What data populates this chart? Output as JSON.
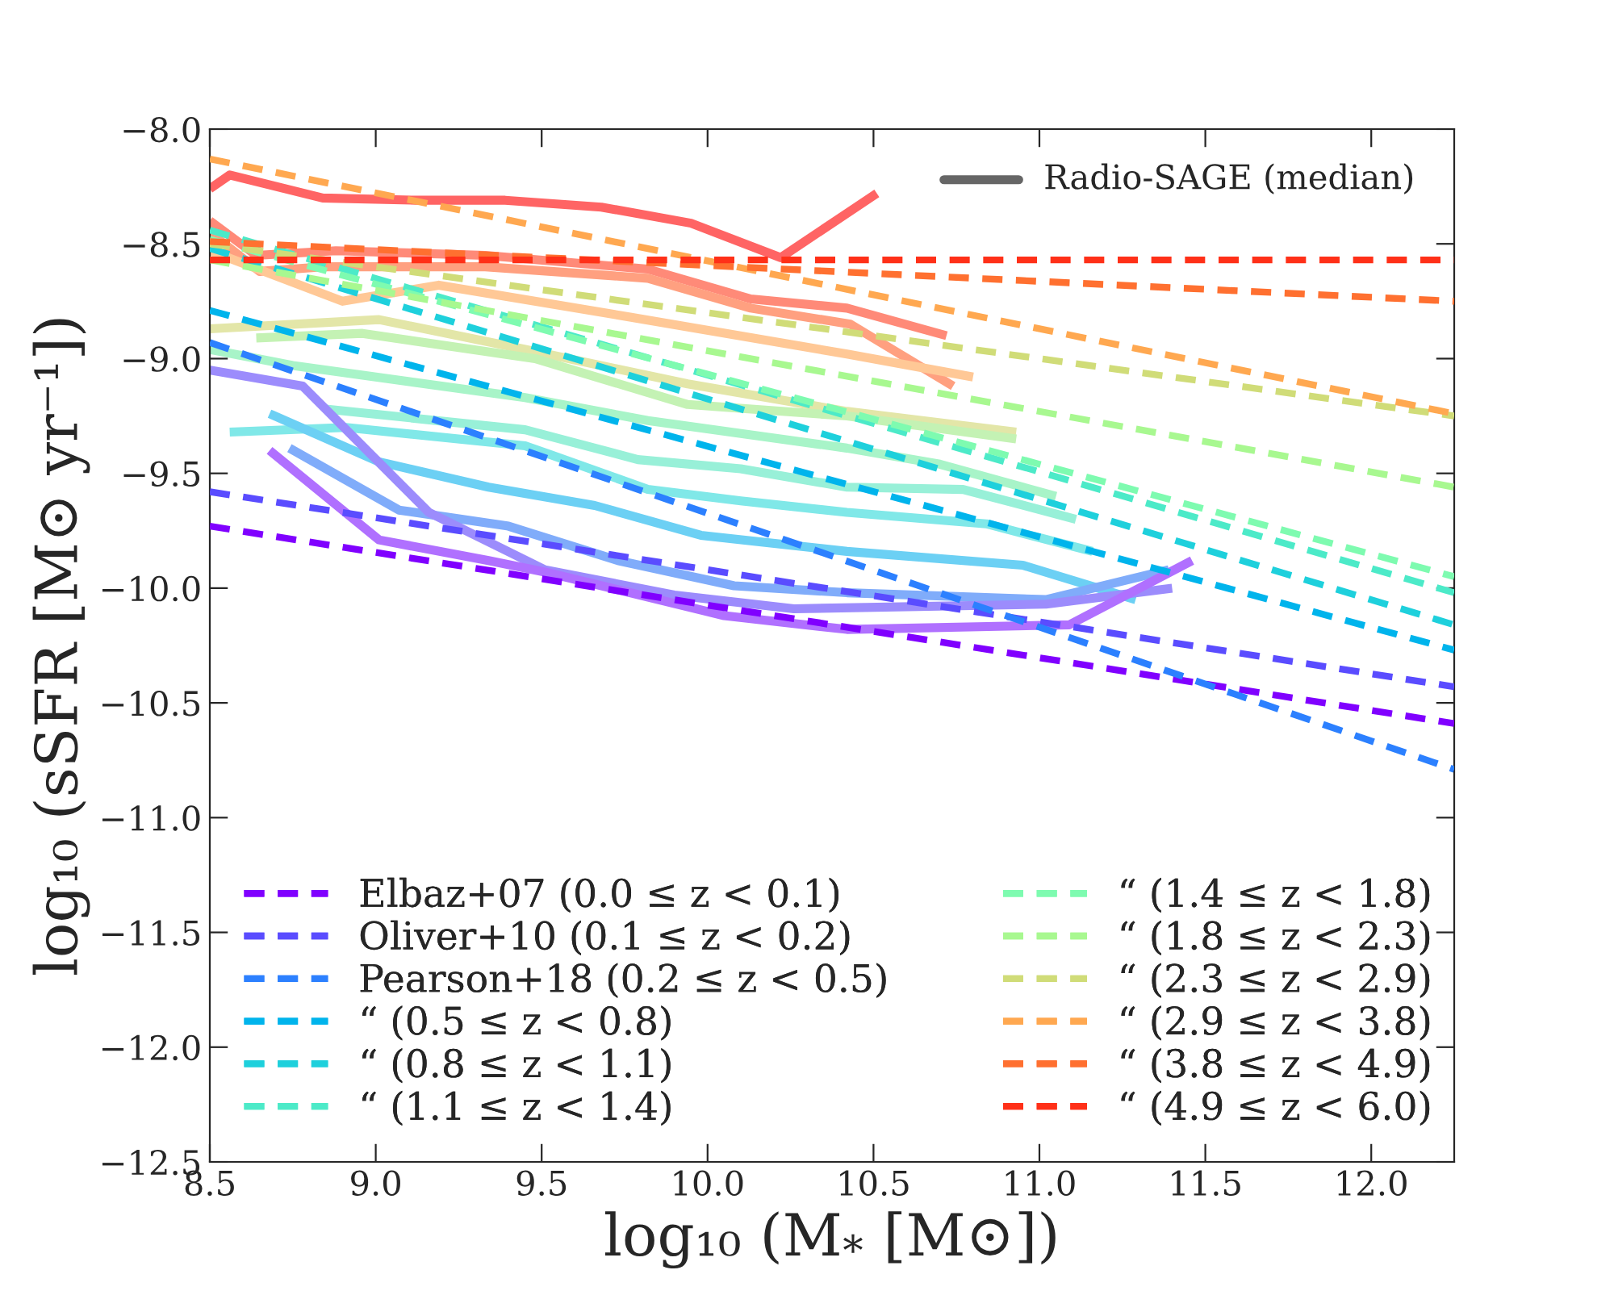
{
  "chart_data": {
    "type": "line",
    "xlabel": "log₁₀ (M$_{*}$ [M⊙])",
    "ylabel": "log₁₀ (sSFR [M⊙ yr⁻¹])",
    "xlim": [
      8.5,
      12.25
    ],
    "ylim": [
      -12.5,
      -8.0
    ],
    "xticks": [
      {
        "value": 8.5,
        "label": "8.5"
      },
      {
        "value": 9.0,
        "label": "9.0"
      },
      {
        "value": 9.5,
        "label": "9.5"
      },
      {
        "value": 10.0,
        "label": "10.0"
      },
      {
        "value": 10.5,
        "label": "10.5"
      },
      {
        "value": 11.0,
        "label": "11.0"
      },
      {
        "value": 11.5,
        "label": "11.5"
      },
      {
        "value": 12.0,
        "label": "12.0"
      }
    ],
    "yticks": [
      {
        "value": -8.0,
        "label": "−8.0"
      },
      {
        "value": -8.5,
        "label": "−8.5"
      },
      {
        "value": -9.0,
        "label": "−9.0"
      },
      {
        "value": -9.5,
        "label": "−9.5"
      },
      {
        "value": -10.0,
        "label": "−10.0"
      },
      {
        "value": -10.5,
        "label": "−10.5"
      },
      {
        "value": -11.0,
        "label": "−11.0"
      },
      {
        "value": -11.5,
        "label": "−11.5"
      },
      {
        "value": -12.0,
        "label": "−12.0"
      },
      {
        "value": -12.5,
        "label": "−12.5"
      }
    ],
    "grid": false,
    "legend": "bottom left",
    "series": [
      {
        "line_style": "solid",
        "color": "#ff6464",
        "x": [
          8.5,
          8.56,
          8.84,
          9.12,
          9.39,
          9.68,
          9.95,
          10.22,
          10.51
        ],
        "values": [
          -8.26,
          -8.2,
          -8.3,
          -8.31,
          -8.31,
          -8.34,
          -8.41,
          -8.56,
          -8.28
        ]
      },
      {
        "line_style": "solid",
        "color": "#ff8a78",
        "x": [
          8.5,
          8.64,
          8.88,
          9.33,
          9.82,
          10.13,
          10.42,
          10.72
        ],
        "values": [
          -8.4,
          -8.55,
          -8.53,
          -8.55,
          -8.61,
          -8.74,
          -8.78,
          -8.9
        ]
      },
      {
        "line_style": "solid",
        "color": "#ffa080",
        "x": [
          8.5,
          8.65,
          8.84,
          9.33,
          9.82,
          10.13,
          10.43,
          10.74
        ],
        "values": [
          -8.45,
          -8.62,
          -8.6,
          -8.6,
          -8.65,
          -8.78,
          -8.85,
          -9.12
        ]
      },
      {
        "line_style": "solid",
        "color": "#ffc896",
        "x": [
          8.5,
          8.9,
          9.19,
          9.77,
          10.42,
          10.8
        ],
        "values": [
          -8.53,
          -8.75,
          -8.68,
          -8.82,
          -8.98,
          -9.08
        ]
      },
      {
        "line_style": "solid",
        "color": "#e3e6a8",
        "x": [
          8.5,
          9.01,
          9.45,
          9.94,
          10.42,
          10.93
        ],
        "values": [
          -8.87,
          -8.83,
          -8.96,
          -9.11,
          -9.23,
          -9.32
        ]
      },
      {
        "line_style": "solid",
        "color": "#c4f2b4",
        "x": [
          8.64,
          8.96,
          9.48,
          9.94,
          10.42,
          10.93
        ],
        "values": [
          -8.91,
          -8.89,
          -9.0,
          -9.2,
          -9.25,
          -9.35
        ]
      },
      {
        "line_style": "solid",
        "color": "#a8f4c8",
        "x": [
          8.5,
          8.75,
          9.45,
          9.82,
          10.42,
          10.7,
          11.05
        ],
        "values": [
          -8.96,
          -9.03,
          -9.17,
          -9.27,
          -9.39,
          -9.46,
          -9.6
        ]
      },
      {
        "line_style": "solid",
        "color": "#98f0d8",
        "x": [
          8.85,
          9.45,
          9.79,
          10.1,
          10.42,
          10.77,
          11.11
        ],
        "values": [
          -9.22,
          -9.31,
          -9.44,
          -9.48,
          -9.56,
          -9.57,
          -9.7
        ]
      },
      {
        "line_style": "solid",
        "color": "#80e8e8",
        "x": [
          8.56,
          8.91,
          9.45,
          9.53,
          9.82,
          10.1,
          10.42,
          10.84,
          11.16
        ],
        "values": [
          -9.32,
          -9.3,
          -9.38,
          -9.42,
          -9.57,
          -9.62,
          -9.67,
          -9.72,
          -9.84
        ]
      },
      {
        "line_style": "solid",
        "color": "#6cd0f4",
        "x": [
          8.68,
          9.01,
          9.34,
          9.66,
          9.98,
          10.42,
          10.95,
          11.29
        ],
        "values": [
          -9.24,
          -9.45,
          -9.56,
          -9.64,
          -9.77,
          -9.84,
          -9.9,
          -10.05
        ]
      },
      {
        "line_style": "solid",
        "color": "#80acfa",
        "x": [
          8.74,
          9.07,
          9.4,
          9.73,
          10.08,
          10.42,
          11.02,
          11.39
        ],
        "values": [
          -9.39,
          -9.66,
          -9.73,
          -9.88,
          -9.99,
          -10.02,
          -10.05,
          -9.92
        ]
      },
      {
        "line_style": "solid",
        "color": "#9c8cfc",
        "x": [
          8.5,
          8.78,
          9.16,
          9.51,
          9.9,
          10.26,
          11.02,
          11.4
        ],
        "values": [
          -9.05,
          -9.12,
          -9.67,
          -9.92,
          -10.03,
          -10.09,
          -10.07,
          -10.0
        ]
      },
      {
        "line_style": "solid",
        "color": "#b070ff",
        "x": [
          8.68,
          9.01,
          9.34,
          9.51,
          10.05,
          10.42,
          11.09,
          11.46
        ],
        "values": [
          -9.4,
          -9.79,
          -9.88,
          -9.93,
          -10.12,
          -10.18,
          -10.16,
          -9.88
        ]
      },
      {
        "line_style": "dashed",
        "name": "Elbaz+07 (0.0 ≤ z < 0.1)",
        "color": "#8000ff",
        "x": [
          8.5,
          12.25
        ],
        "values": [
          -9.73,
          -10.59
        ]
      },
      {
        "line_style": "dashed",
        "name": "Oliver+10 (0.1 ≤ z < 0.2)",
        "color": "#5a4cff",
        "x": [
          8.5,
          12.25
        ],
        "values": [
          -9.58,
          -10.43
        ]
      },
      {
        "line_style": "dashed",
        "name": "Pearson+18 (0.2 ≤ z < 0.5)",
        "color": "#2c80ff",
        "x": [
          8.5,
          12.25
        ],
        "values": [
          -8.93,
          -10.79
        ]
      },
      {
        "line_style": "dashed",
        "name": "“ (0.5 ≤ z < 0.8)",
        "color": "#00b4ec",
        "x": [
          8.5,
          12.25
        ],
        "values": [
          -8.79,
          -10.27
        ]
      },
      {
        "line_style": "dashed",
        "name": "“ (0.8 ≤ z < 1.1)",
        "color": "#1ed0dc",
        "x": [
          8.5,
          12.25
        ],
        "values": [
          -8.52,
          -10.16
        ]
      },
      {
        "line_style": "dashed",
        "name": "“ (1.1 ≤ z < 1.4)",
        "color": "#4ceac8",
        "x": [
          8.5,
          12.25
        ],
        "values": [
          -8.44,
          -10.02
        ]
      },
      {
        "line_style": "dashed",
        "name": "“ (1.4 ≤ z < 1.8)",
        "color": "#7efbb0",
        "x": [
          8.5,
          12.25
        ],
        "values": [
          -8.48,
          -9.95
        ]
      },
      {
        "line_style": "dashed",
        "name": "“ (1.8 ≤ z < 2.3)",
        "color": "#a8f890",
        "x": [
          8.5,
          12.25
        ],
        "values": [
          -8.57,
          -9.56
        ]
      },
      {
        "line_style": "dashed",
        "name": "“ (2.3 ≤ z < 2.9)",
        "color": "#d0dc78",
        "x": [
          8.5,
          12.25
        ],
        "values": [
          -8.5,
          -9.25
        ]
      },
      {
        "line_style": "dashed",
        "name": "“ (2.9 ≤ z < 3.8)",
        "color": "#ffa850",
        "x": [
          8.5,
          12.25
        ],
        "values": [
          -8.13,
          -9.24
        ]
      },
      {
        "line_style": "dashed",
        "name": "“ (3.8 ≤ z < 4.9)",
        "color": "#ff7030",
        "x": [
          8.5,
          12.25
        ],
        "values": [
          -8.49,
          -8.75
        ]
      },
      {
        "line_style": "dashed",
        "name": "“ (4.9 ≤ z < 6.0)",
        "color": "#ff3018",
        "x": [
          8.5,
          12.25
        ],
        "values": [
          -8.57,
          -8.57
        ]
      },
      {
        "line_style": "solid",
        "color": "#666666"
      }
    ],
    "annotations": [
      "Radio-SAGE (median)"
    ]
  }
}
